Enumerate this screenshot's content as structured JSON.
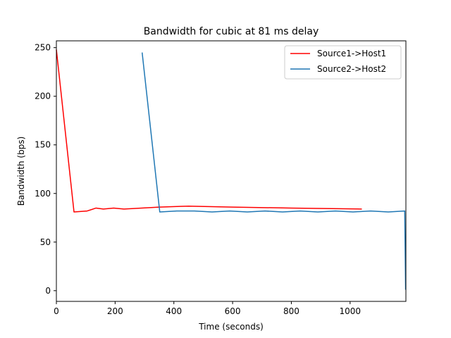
{
  "chart_data": {
    "type": "line",
    "title": "Bandwidth for cubic at 81 ms delay",
    "xlabel": "Time (seconds)",
    "ylabel": "Bandwidth (bps)",
    "xlim": [
      0,
      1190
    ],
    "ylim": [
      -11,
      257
    ],
    "xticks": [
      0,
      200,
      400,
      600,
      800,
      1000
    ],
    "yticks": [
      0,
      50,
      100,
      150,
      200,
      250
    ],
    "grid": false,
    "legend": "top-right",
    "series": [
      {
        "name": "Source1->Host1",
        "color": "#ff0000",
        "x": [
          0,
          60,
          105,
          135,
          160,
          195,
          230,
          290,
          350,
          450,
          600,
          800,
          1040
        ],
        "y": [
          248,
          81,
          82,
          85,
          84,
          85,
          84,
          85,
          86,
          87,
          86,
          85,
          84
        ]
      },
      {
        "name": "Source2->Host2",
        "color": "#1f77b4",
        "x": [
          292,
          352,
          410,
          470,
          530,
          590,
          650,
          710,
          770,
          830,
          890,
          950,
          1010,
          1070,
          1130,
          1186,
          1189
        ],
        "y": [
          245,
          81,
          82,
          82,
          81,
          82,
          81,
          82,
          81,
          82,
          81,
          82,
          81,
          82,
          81,
          82,
          1
        ]
      }
    ]
  }
}
